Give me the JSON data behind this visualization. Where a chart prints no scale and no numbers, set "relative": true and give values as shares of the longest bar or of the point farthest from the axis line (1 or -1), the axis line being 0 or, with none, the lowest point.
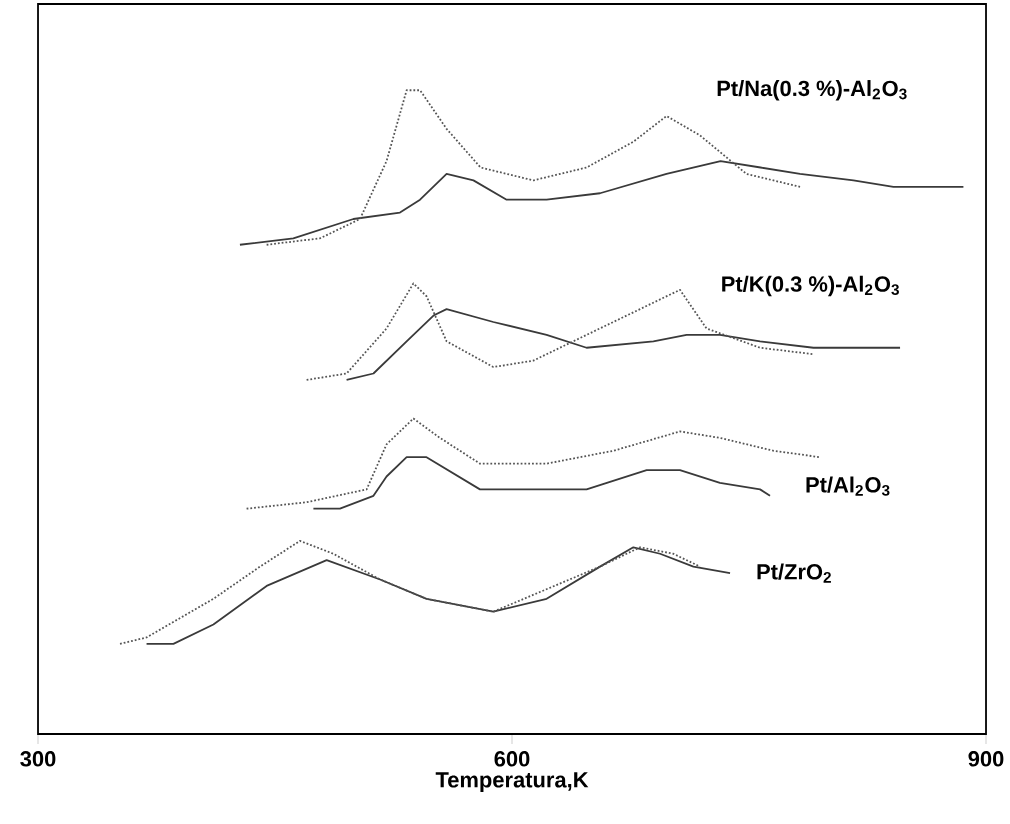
{
  "chart_data": {
    "type": "line",
    "relative": true,
    "xlabel": "Temperatura,K",
    "xlim": [
      300,
      900
    ],
    "xticks": [
      300,
      600,
      900
    ],
    "grid": false,
    "marker": "none",
    "series": [
      {
        "name": "Pt/Na(0.3 %)-Al$_{2}$O$_{3}$",
        "color": "#3a3a3a",
        "line_style": "solid",
        "x": [
          427.8,
          461.6,
          499.6,
          529.1,
          541.8,
          558.6,
          575.6,
          596.6,
          621.9,
          655.7,
          697.8,
          732,
          757.3,
          782.3,
          816.1,
          841.4,
          885.7
        ],
        "values": [
          0.76,
          0.77,
          0.8,
          0.81,
          0.83,
          0.87,
          0.86,
          0.83,
          0.83,
          0.84,
          0.87,
          0.89,
          0.88,
          0.87,
          0.86,
          0.85,
          0.85
        ]
      },
      {
        "color": "#555555",
        "line_style": "dotted",
        "x": [
          444.7,
          478.5,
          503.8,
          520.6,
          533.3,
          541.8,
          558.6,
          580.1,
          613.5,
          647.2,
          676.8,
          697.8,
          718.9,
          748.4,
          782.3
        ],
        "values": [
          0.76,
          0.77,
          0.8,
          0.89,
          1.0,
          1.0,
          0.94,
          0.88,
          0.86,
          0.88,
          0.92,
          0.96,
          0.93,
          0.87,
          0.85
        ]
      },
      {
        "name": "Pt/K(0.3 %)-Al$_{2}$O$_{3}$",
        "color": "#3a3a3a",
        "line_style": "solid",
        "x": [
          495.3,
          512.3,
          533.3,
          550.3,
          558.6,
          588.2,
          621.9,
          647.2,
          689.5,
          710.5,
          731.6,
          757,
          790.8,
          845.6
        ],
        "values": [
          0.55,
          0.56,
          0.61,
          0.65,
          0.66,
          0.64,
          0.62,
          0.6,
          0.61,
          0.62,
          0.62,
          0.61,
          0.6,
          0.6
        ]
      },
      {
        "color": "#555555",
        "line_style": "dotted",
        "x": [
          470,
          495.3,
          520.6,
          537.6,
          545.9,
          558.6,
          588.2,
          613.5,
          647.2,
          681,
          706.3,
          723.1,
          757,
          790.8
        ],
        "values": [
          0.55,
          0.56,
          0.63,
          0.7,
          0.68,
          0.61,
          0.57,
          0.58,
          0.62,
          0.66,
          0.69,
          0.63,
          0.6,
          0.59
        ]
      },
      {
        "name": "Pt/Al$_{2}$O$_{3}$",
        "color": "#3a3a3a",
        "line_style": "solid",
        "x": [
          474.3,
          491.1,
          512.3,
          520.6,
          533.3,
          545.9,
          579.7,
          621.9,
          647.2,
          685.2,
          706.3,
          731.6,
          757,
          763.3
        ],
        "values": [
          0.35,
          0.35,
          0.37,
          0.4,
          0.43,
          0.43,
          0.38,
          0.38,
          0.38,
          0.41,
          0.41,
          0.39,
          0.38,
          0.37
        ]
      },
      {
        "color": "#555555",
        "line_style": "dotted",
        "x": [
          432,
          470,
          508,
          520.6,
          537.6,
          554.4,
          579.7,
          621.9,
          664.2,
          706.3,
          731.6,
          765.4,
          794.9
        ],
        "values": [
          0.35,
          0.36,
          0.38,
          0.45,
          0.49,
          0.46,
          0.42,
          0.42,
          0.44,
          0.47,
          0.46,
          0.44,
          0.43
        ]
      },
      {
        "name": "Pt/ZrO$_{2}$",
        "color": "#3a3a3a",
        "line_style": "solid",
        "x": [
          368.7,
          385.7,
          411,
          444.7,
          482.7,
          516.5,
          545.9,
          588.2,
          621.9,
          655.7,
          676.8,
          693.7,
          714.8,
          738
        ],
        "values": [
          0.14,
          0.14,
          0.17,
          0.23,
          0.27,
          0.24,
          0.21,
          0.19,
          0.21,
          0.26,
          0.29,
          0.28,
          0.26,
          0.25
        ]
      },
      {
        "color": "#555555",
        "line_style": "dotted",
        "x": [
          351.9,
          368.7,
          411,
          440.5,
          465.8,
          486.9,
          516.5,
          545.9,
          588.2,
          655.7,
          681,
          702.1,
          719
        ],
        "values": [
          0.14,
          0.15,
          0.21,
          0.26,
          0.3,
          0.28,
          0.24,
          0.21,
          0.19,
          0.26,
          0.29,
          0.28,
          0.26
        ]
      }
    ]
  }
}
